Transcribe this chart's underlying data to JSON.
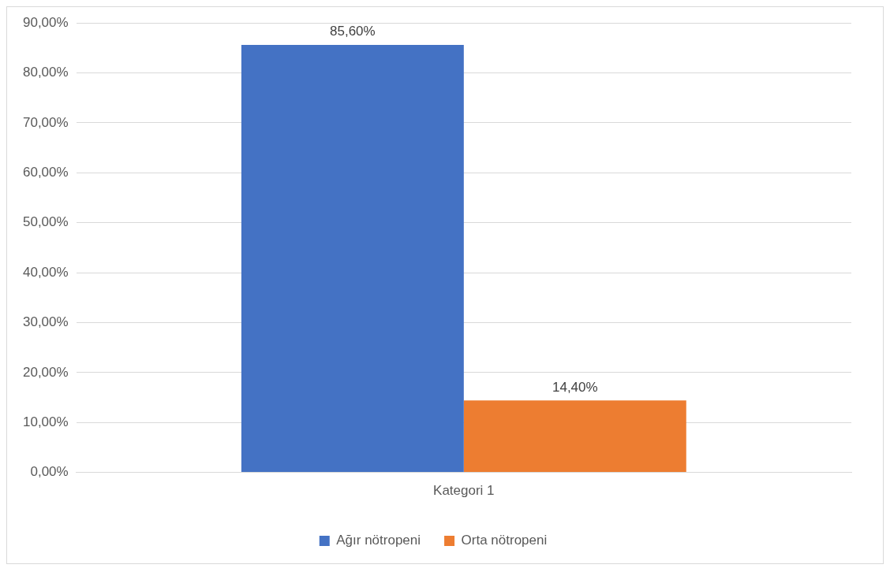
{
  "chart_data": {
    "type": "bar",
    "categories": [
      "Kategori 1"
    ],
    "series": [
      {
        "name": "Ağır nötropeni",
        "color": "#4472c4",
        "values": [
          85.6
        ],
        "value_labels": [
          "85,60%"
        ]
      },
      {
        "name": "Orta nötropeni",
        "color": "#ed7d31",
        "values": [
          14.4
        ],
        "value_labels": [
          "14,40%"
        ]
      }
    ],
    "ylim": [
      0,
      90
    ],
    "yticks": [
      {
        "value": 0,
        "label": "0,00%"
      },
      {
        "value": 10,
        "label": "10,00%"
      },
      {
        "value": 20,
        "label": "20,00%"
      },
      {
        "value": 30,
        "label": "30,00%"
      },
      {
        "value": 40,
        "label": "40,00%"
      },
      {
        "value": 50,
        "label": "50,00%"
      },
      {
        "value": 60,
        "label": "60,00%"
      },
      {
        "value": 70,
        "label": "70,00%"
      },
      {
        "value": 80,
        "label": "80,00%"
      },
      {
        "value": 90,
        "label": "90,00%"
      }
    ],
    "grid": "y",
    "legend": "bottom"
  }
}
